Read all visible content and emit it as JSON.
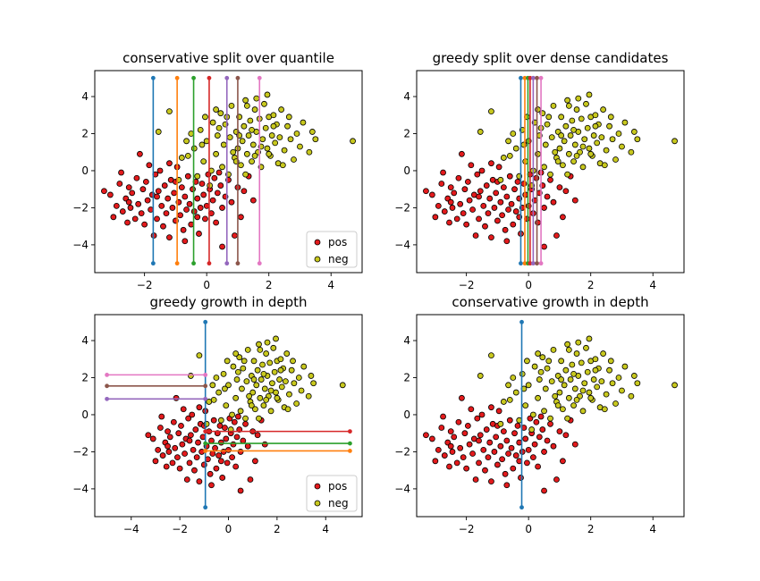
{
  "colors": {
    "pos": "#e31a1c",
    "neg": "#c8c81e",
    "split_lines": [
      "#1f77b4",
      "#ff7f0e",
      "#2ca02c",
      "#d62728",
      "#9467bd",
      "#8c564b",
      "#e377c2"
    ]
  },
  "chart_data": [
    {
      "type": "scatter",
      "title": "conservative split over quantile",
      "xlim": [
        -3.6,
        5.0
      ],
      "ylim": [
        -5.5,
        5.4
      ],
      "xticks": [
        -2,
        0,
        2,
        4
      ],
      "yticks": [
        -4,
        -2,
        0,
        2,
        4
      ],
      "grid": false,
      "legend": {
        "placement": "bottom-right",
        "entries": [
          "pos",
          "neg"
        ]
      },
      "split_lines": [
        {
          "orientation": "vertical",
          "at": -1.72,
          "from": -5.0,
          "to": 5.0
        },
        {
          "orientation": "vertical",
          "at": -0.95,
          "from": -5.0,
          "to": 5.0
        },
        {
          "orientation": "vertical",
          "at": -0.42,
          "from": -5.0,
          "to": 5.0
        },
        {
          "orientation": "vertical",
          "at": 0.08,
          "from": -5.0,
          "to": 5.0
        },
        {
          "orientation": "vertical",
          "at": 0.65,
          "from": -5.0,
          "to": 5.0
        },
        {
          "orientation": "vertical",
          "at": 1.0,
          "from": -5.0,
          "to": 5.0
        },
        {
          "orientation": "vertical",
          "at": 1.7,
          "from": -5.0,
          "to": 5.0
        }
      ]
    },
    {
      "type": "scatter",
      "title": "greedy split over dense candidates",
      "xlim": [
        -3.6,
        5.0
      ],
      "ylim": [
        -5.5,
        5.4
      ],
      "xticks": [
        -2,
        0,
        2,
        4
      ],
      "yticks": [
        -4,
        -2,
        0,
        2,
        4
      ],
      "grid": false,
      "split_lines": [
        {
          "orientation": "vertical",
          "at": -0.25,
          "from": -5.0,
          "to": 5.0
        },
        {
          "orientation": "vertical",
          "at": -0.12,
          "from": -5.0,
          "to": 5.0
        },
        {
          "orientation": "vertical",
          "at": -0.02,
          "from": -5.0,
          "to": 5.0
        },
        {
          "orientation": "vertical",
          "at": 0.05,
          "from": -5.0,
          "to": 5.0
        },
        {
          "orientation": "vertical",
          "at": 0.15,
          "from": -5.0,
          "to": 5.0
        },
        {
          "orientation": "vertical",
          "at": 0.27,
          "from": -5.0,
          "to": 5.0
        },
        {
          "orientation": "vertical",
          "at": 0.4,
          "from": -5.0,
          "to": 5.0
        }
      ]
    },
    {
      "type": "scatter",
      "title": "greedy growth in depth",
      "xlim": [
        -5.5,
        5.5
      ],
      "ylim": [
        -5.5,
        5.4
      ],
      "xticks": [
        -4,
        -2,
        0,
        2,
        4
      ],
      "yticks": [
        -4,
        -2,
        0,
        2,
        4
      ],
      "grid": false,
      "legend": {
        "placement": "bottom-right",
        "entries": [
          "pos",
          "neg"
        ]
      },
      "split_lines": [
        {
          "orientation": "vertical",
          "at": -0.95,
          "from": -5.0,
          "to": 5.0
        },
        {
          "orientation": "horizontal",
          "at": -1.95,
          "from": -0.95,
          "to": 5.0
        },
        {
          "orientation": "horizontal",
          "at": -1.55,
          "from": -0.95,
          "to": 5.0
        },
        {
          "orientation": "horizontal",
          "at": -0.9,
          "from": -0.95,
          "to": 5.0
        },
        {
          "orientation": "horizontal",
          "at": 0.85,
          "from": -5.0,
          "to": -0.95
        },
        {
          "orientation": "horizontal",
          "at": 1.55,
          "from": -5.0,
          "to": -0.95
        },
        {
          "orientation": "horizontal",
          "at": 2.15,
          "from": -5.0,
          "to": -0.95
        }
      ]
    },
    {
      "type": "scatter",
      "title": "conservative growth in depth",
      "xlim": [
        -3.6,
        5.0
      ],
      "ylim": [
        -5.5,
        5.4
      ],
      "xticks": [
        -2,
        0,
        2,
        4
      ],
      "yticks": [
        -4,
        -2,
        0,
        2,
        4
      ],
      "grid": false,
      "split_lines": [
        {
          "orientation": "vertical",
          "at": -0.22,
          "from": -5.0,
          "to": 5.0
        }
      ]
    }
  ],
  "points": {
    "pos": [
      [
        -3.3,
        -1.1
      ],
      [
        -3.1,
        -1.3
      ],
      [
        -3.0,
        -2.5
      ],
      [
        -2.9,
        -1.9
      ],
      [
        -2.8,
        -0.7
      ],
      [
        -2.7,
        -2.2
      ],
      [
        -2.6,
        -1.5
      ],
      [
        -2.55,
        -2.8
      ],
      [
        -2.5,
        -0.9
      ],
      [
        -2.45,
        -2.0
      ],
      [
        -2.4,
        -1.2
      ],
      [
        -2.3,
        -2.6
      ],
      [
        -2.25,
        -0.4
      ],
      [
        -2.2,
        -1.8
      ],
      [
        -2.15,
        0.9
      ],
      [
        -2.1,
        -2.3
      ],
      [
        -2.05,
        -1.0
      ],
      [
        -2.0,
        -2.9
      ],
      [
        -1.95,
        -0.6
      ],
      [
        -1.9,
        -1.6
      ],
      [
        -1.85,
        0.3
      ],
      [
        -1.8,
        -2.1
      ],
      [
        -1.75,
        -1.3
      ],
      [
        -1.7,
        -3.5
      ],
      [
        -1.65,
        -0.2
      ],
      [
        -1.6,
        -2.6
      ],
      [
        -1.55,
        -1.1
      ],
      [
        -1.5,
        0.0
      ],
      [
        -1.45,
        -1.9
      ],
      [
        -1.4,
        -3.0
      ],
      [
        -1.35,
        -0.8
      ],
      [
        -1.3,
        -2.3
      ],
      [
        -1.25,
        -1.5
      ],
      [
        -1.2,
        -3.6
      ],
      [
        -1.15,
        -0.5
      ],
      [
        -1.1,
        -2.0
      ],
      [
        -1.05,
        -1.2
      ],
      [
        -1.0,
        -2.7
      ],
      [
        -0.95,
        0.2
      ],
      [
        -0.9,
        -1.7
      ],
      [
        -0.85,
        -2.4
      ],
      [
        -0.8,
        -0.9
      ],
      [
        -0.75,
        -3.2
      ],
      [
        -0.7,
        -1.4
      ],
      [
        -0.65,
        -2.1
      ],
      [
        -0.6,
        -0.3
      ],
      [
        -0.55,
        -1.8
      ],
      [
        -0.5,
        -2.9
      ],
      [
        -0.45,
        -1.0
      ],
      [
        -0.4,
        -2.2
      ],
      [
        -0.35,
        -0.6
      ],
      [
        -0.3,
        -1.5
      ],
      [
        -0.25,
        -3.4
      ],
      [
        -0.2,
        -2.0
      ],
      [
        -0.15,
        -0.7
      ],
      [
        -0.1,
        -1.3
      ],
      [
        -0.05,
        -2.6
      ],
      [
        0.0,
        -1.9
      ],
      [
        0.05,
        -0.2
      ],
      [
        0.1,
        -1.0
      ],
      [
        0.15,
        -2.3
      ],
      [
        0.2,
        -1.6
      ],
      [
        0.25,
        -0.4
      ],
      [
        0.3,
        -2.8
      ],
      [
        0.35,
        -1.2
      ],
      [
        0.45,
        -0.8
      ],
      [
        0.5,
        -2.0
      ],
      [
        0.6,
        -1.4
      ],
      [
        0.7,
        -0.5
      ],
      [
        0.8,
        -1.7
      ],
      [
        0.9,
        -3.5
      ],
      [
        1.0,
        -0.9
      ],
      [
        1.1,
        -2.5
      ],
      [
        1.2,
        -1.1
      ],
      [
        1.35,
        -0.3
      ],
      [
        0.5,
        -4.1
      ],
      [
        -2.5,
        -1.7
      ],
      [
        -1.6,
        -1.4
      ],
      [
        -1.0,
        -0.6
      ],
      [
        -0.3,
        -2.5
      ],
      [
        0.4,
        -0.1
      ],
      [
        -2.75,
        -0.1
      ],
      [
        -1.2,
        0.4
      ],
      [
        1.5,
        -1.6
      ],
      [
        -0.7,
        -3.8
      ]
    ],
    "neg": [
      [
        -0.9,
        -0.5
      ],
      [
        -0.6,
        0.8
      ],
      [
        -0.5,
        2.0
      ],
      [
        -0.4,
        1.2
      ],
      [
        -0.3,
        -0.3
      ],
      [
        -0.2,
        2.2
      ],
      [
        -0.1,
        0.5
      ],
      [
        0.0,
        1.6
      ],
      [
        0.1,
        -0.8
      ],
      [
        0.2,
        2.6
      ],
      [
        0.3,
        0.9
      ],
      [
        0.35,
        1.9
      ],
      [
        0.45,
        3.1
      ],
      [
        0.5,
        0.2
      ],
      [
        0.55,
        1.4
      ],
      [
        0.6,
        2.5
      ],
      [
        0.7,
        -0.2
      ],
      [
        0.75,
        1.8
      ],
      [
        0.8,
        3.5
      ],
      [
        0.9,
        0.7
      ],
      [
        0.95,
        2.1
      ],
      [
        1.0,
        1.2
      ],
      [
        1.05,
        2.9
      ],
      [
        1.1,
        0.3
      ],
      [
        1.15,
        1.6
      ],
      [
        1.2,
        2.4
      ],
      [
        1.25,
        3.8
      ],
      [
        1.3,
        0.9
      ],
      [
        1.35,
        1.9
      ],
      [
        1.4,
        2.7
      ],
      [
        1.45,
        0.5
      ],
      [
        1.5,
        1.4
      ],
      [
        1.55,
        3.3
      ],
      [
        1.6,
        2.1
      ],
      [
        1.65,
        1.0
      ],
      [
        1.7,
        2.8
      ],
      [
        1.75,
        0.2
      ],
      [
        1.8,
        1.7
      ],
      [
        1.85,
        3.6
      ],
      [
        1.9,
        2.3
      ],
      [
        1.95,
        1.2
      ],
      [
        2.0,
        2.9
      ],
      [
        2.05,
        0.8
      ],
      [
        2.1,
        1.9
      ],
      [
        2.15,
        3.0
      ],
      [
        2.2,
        1.5
      ],
      [
        2.25,
        2.5
      ],
      [
        2.3,
        0.4
      ],
      [
        2.35,
        1.8
      ],
      [
        2.4,
        3.3
      ],
      [
        2.5,
        1.1
      ],
      [
        2.6,
        2.4
      ],
      [
        2.7,
        1.7
      ],
      [
        2.8,
        0.6
      ],
      [
        2.9,
        2.0
      ],
      [
        3.0,
        1.3
      ],
      [
        3.1,
        2.6
      ],
      [
        3.3,
        1.0
      ],
      [
        3.4,
        2.1
      ],
      [
        3.5,
        1.7
      ],
      [
        4.7,
        1.6
      ],
      [
        -1.2,
        3.2
      ],
      [
        -0.8,
        0.7
      ],
      [
        0.15,
        0.0
      ],
      [
        0.65,
        2.9
      ],
      [
        1.25,
        -0.2
      ],
      [
        1.6,
        3.9
      ],
      [
        2.15,
        2.4
      ],
      [
        0.85,
        1.0
      ],
      [
        1.45,
        2.2
      ],
      [
        -0.15,
        1.4
      ],
      [
        2.45,
        0.3
      ],
      [
        0.3,
        3.3
      ],
      [
        1.95,
        4.1
      ],
      [
        -1.55,
        2.1
      ],
      [
        -0.65,
        1.6
      ],
      [
        1.05,
        1.9
      ],
      [
        1.75,
        1.3
      ],
      [
        2.65,
        2.9
      ],
      [
        0.4,
        2.3
      ],
      [
        1.3,
        3.5
      ],
      [
        2.0,
        0.9
      ],
      [
        0.95,
        0.5
      ],
      [
        -0.05,
        2.9
      ],
      [
        1.55,
        0.8
      ]
    ]
  }
}
